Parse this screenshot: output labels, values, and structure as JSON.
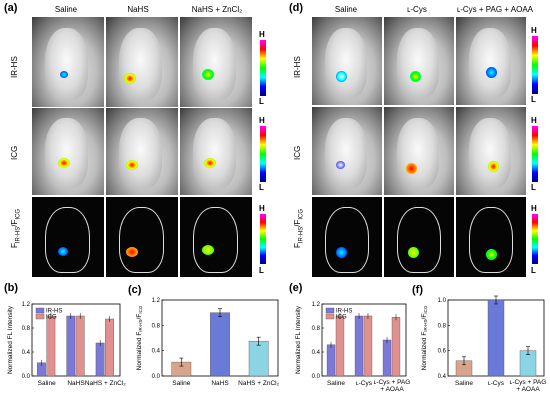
{
  "panels": {
    "a": "(a)",
    "b": "(b)",
    "c": "(c)",
    "d": "(d)",
    "e": "(e)",
    "f": "(f)"
  },
  "left_cols": [
    "Saline",
    "NaHS",
    "NaHS + ZnCl₂"
  ],
  "right_cols": [
    "Saline",
    "ʟ-Cys",
    "ʟ-Cys + PAG + AOAA"
  ],
  "row_labels": {
    "ir": "IR-HS",
    "icg": "ICG",
    "ratio": "F",
    "ratio_sub1": "IR-HS",
    "ratio_mid": "/F",
    "ratio_sub2": "ICG"
  },
  "scale": {
    "high": "H",
    "low": "L"
  },
  "colors": {
    "irhs": "#7b78d8",
    "icg": "#e0908f",
    "c_bar1": "#d9a48c",
    "c_bar2": "#6a7ad8",
    "c_bar3": "#8ad4e4"
  },
  "chart_data": [
    {
      "type": "bar",
      "panel": "b",
      "ylabel": "Normalized FL Intensity",
      "categories": [
        "Saline",
        "NaHS",
        "NaHS + ZnCl₂"
      ],
      "ylim": [
        0,
        1.2
      ],
      "yticks": [
        "0.0",
        "0.4",
        "0.8",
        "1.2"
      ],
      "series": [
        {
          "name": "IR-HS",
          "values": [
            0.22,
            1.0,
            0.55
          ]
        },
        {
          "name": "ICG",
          "values": [
            1.0,
            1.0,
            0.95
          ]
        }
      ],
      "legend": "top-left"
    },
    {
      "type": "bar",
      "panel": "c",
      "ylabel": "Normalized F",
      "ylabel_sub1": "IR-HS",
      "ylabel_mid": "/F",
      "ylabel_sub2": "ICG",
      "categories": [
        "Saline",
        "NaHS",
        "NaHS + ZnCl₂"
      ],
      "ylim": [
        0,
        1.2
      ],
      "yticks": [
        "0.0",
        "0.4",
        "0.8",
        "1.2"
      ],
      "values": [
        0.22,
        1.0,
        0.55
      ]
    },
    {
      "type": "bar",
      "panel": "e",
      "ylabel": "Normalized FL Intensity",
      "categories": [
        "Saline",
        "ʟ-Cys",
        "ʟ-Cys + PAG + AOAA"
      ],
      "ylim": [
        0,
        1.2
      ],
      "yticks": [
        "0.0",
        "0.4",
        "0.8",
        "1.2"
      ],
      "series": [
        {
          "name": "IR-HS",
          "values": [
            0.52,
            1.0,
            0.6
          ]
        },
        {
          "name": "ICG",
          "values": [
            1.0,
            1.0,
            0.98
          ]
        }
      ],
      "legend": "top-left"
    },
    {
      "type": "bar",
      "panel": "f",
      "ylabel": "Normalized F",
      "ylabel_sub1": "IR-HS",
      "ylabel_mid": "/F",
      "ylabel_sub2": "ICG",
      "categories": [
        "Saline",
        "ʟ-Cys",
        "ʟ-Cys + PAG + AOAA"
      ],
      "ylim": [
        0.4,
        1.0
      ],
      "yticks": [
        "0.4",
        "0.6",
        "0.8",
        "1.0"
      ],
      "values": [
        0.52,
        1.0,
        0.6
      ]
    }
  ]
}
